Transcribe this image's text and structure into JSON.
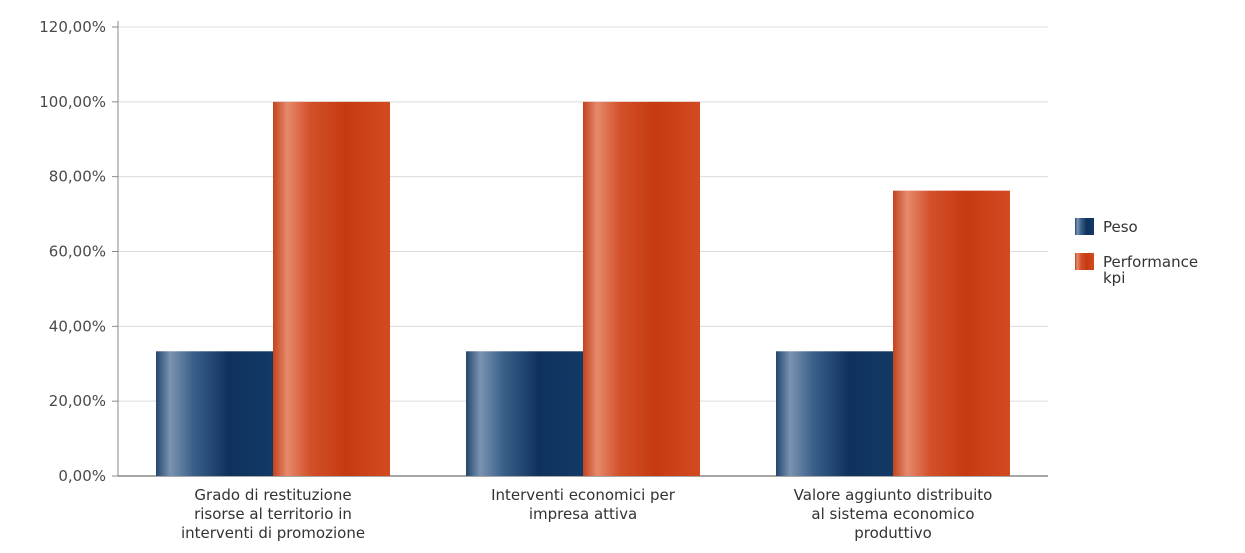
{
  "chart_data": {
    "type": "bar",
    "categories": [
      [
        "Grado di restituzione",
        "risorse al territorio in",
        "interventi di promozione"
      ],
      [
        "Interventi economici per",
        "impresa attiva"
      ],
      [
        "Valore aggiunto distribuito",
        "al sistema economico",
        "produttivo"
      ]
    ],
    "series": [
      {
        "name": "Peso",
        "values": [
          33.33,
          33.33,
          33.33
        ],
        "color": "#1f4a7a"
      },
      {
        "name": "Performance kpi",
        "values": [
          100,
          100,
          76.26
        ],
        "color": "#cc3a12"
      }
    ],
    "yticks": [
      "0,00%",
      "20,00%",
      "40,00%",
      "60,00%",
      "80,00%",
      "100,00%",
      "120,00%"
    ],
    "ylim": [
      0,
      120
    ],
    "grid": true,
    "legend": {
      "placement": "right",
      "entries": [
        [
          "Peso"
        ],
        [
          "Performance",
          "kpi"
        ]
      ]
    }
  }
}
